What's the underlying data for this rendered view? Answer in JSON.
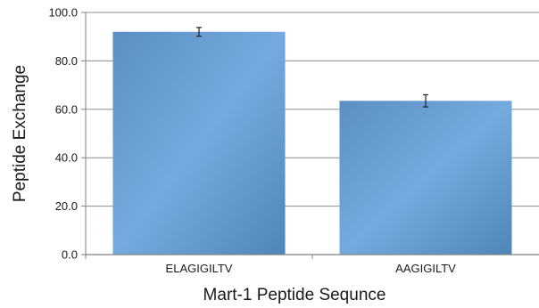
{
  "chart_data": {
    "type": "bar",
    "title": "",
    "xlabel": "Mart-1 Peptide Sequnce",
    "ylabel": "Peptide Exchange",
    "categories": [
      "ELAGIGILTV",
      "AAGIGILTV"
    ],
    "values": [
      92.0,
      63.5
    ],
    "error": [
      1.8,
      2.5
    ],
    "ylim": [
      0,
      100
    ],
    "yticks": [
      0,
      20,
      40,
      60,
      80,
      100
    ],
    "ytick_labels": [
      "0.0",
      "20.0",
      "40.0",
      "60.0",
      "80.0",
      "100.0"
    ],
    "grid": true,
    "legend": "none",
    "colors": {
      "bar_light": "#74aadf",
      "bar_dark": "#4f86b8",
      "grid": "#8c8c8c",
      "axis": "#808080",
      "error_bar": "#222222"
    }
  }
}
